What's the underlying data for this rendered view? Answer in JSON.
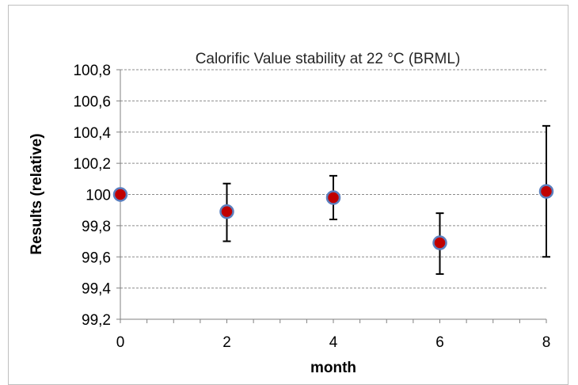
{
  "chart_data": {
    "type": "scatter",
    "title": "Calorific Value stability at 22 °C (BRML)",
    "xlabel": "month",
    "ylabel": "Results (relative)",
    "xlim": [
      0,
      8
    ],
    "ylim": [
      99.2,
      100.8
    ],
    "x_ticks": [
      0,
      2,
      4,
      6,
      8
    ],
    "x_tick_labels": [
      "0",
      "2",
      "4",
      "6",
      "8"
    ],
    "y_ticks": [
      99.2,
      99.4,
      99.6,
      99.8,
      100,
      100.2,
      100.4,
      100.6,
      100.8
    ],
    "y_tick_labels": [
      "99,2",
      "99,4",
      "99,6",
      "99,8",
      "100",
      "100,2",
      "100,4",
      "100,6",
      "100,8"
    ],
    "grid": "horizontal dashed",
    "legend": "none",
    "series": [
      {
        "x": [
          0,
          2,
          4,
          6,
          8
        ],
        "y": [
          100.0,
          99.89,
          99.98,
          99.69,
          100.02
        ],
        "error_low": [
          100.0,
          99.7,
          99.84,
          99.49,
          99.6
        ],
        "error_high": [
          100.0,
          100.07,
          100.12,
          99.88,
          100.44
        ]
      }
    ],
    "colors": {
      "marker_fill": "#c00000",
      "marker_stroke": "#5b7fbf",
      "error_bar": "#000000",
      "grid": "#8c8c8c",
      "axis": "#808080"
    }
  }
}
